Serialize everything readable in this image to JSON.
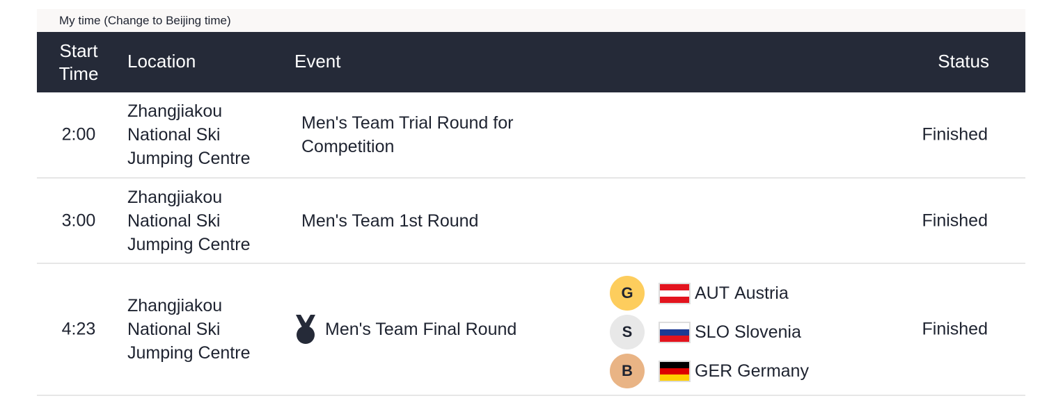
{
  "time_toggle": {
    "prefix": "My time ",
    "link": "(Change to Beijing time)"
  },
  "header": {
    "start_time_line1": "Start",
    "start_time_line2": "Time",
    "location": "Location",
    "event": "Event",
    "status": "Status"
  },
  "rows": [
    {
      "time": "2:00",
      "location": [
        "Zhangjiakou",
        "National Ski",
        "Jumping Centre"
      ],
      "event": "Men's Team Trial Round for Competition",
      "status": "Finished"
    },
    {
      "time": "3:00",
      "location": [
        "Zhangjiakou",
        "National Ski",
        "Jumping Centre"
      ],
      "event": "Men's Team 1st Round",
      "status": "Finished"
    },
    {
      "time": "4:23",
      "location": [
        "Zhangjiakou",
        "National Ski",
        "Jumping Centre"
      ],
      "event": "Men's Team Final Round",
      "event_icon": "medal-icon",
      "status": "Finished",
      "medals": [
        {
          "badge": "G",
          "color": "#fdcd5d",
          "code": "AUT",
          "country": "Austria",
          "flag": [
            "#e3141e",
            "#ffffff",
            "#e3141e"
          ]
        },
        {
          "badge": "S",
          "color": "#e8e8e8",
          "code": "SLO",
          "country": "Slovenia",
          "flag": [
            "#ffffff",
            "#1d3b94",
            "#e3141e"
          ]
        },
        {
          "badge": "B",
          "color": "#e9b485",
          "code": "GER",
          "country": "Germany",
          "flag": [
            "#000000",
            "#dd0000",
            "#ffce00"
          ]
        }
      ]
    }
  ],
  "colors": {
    "header_bg": "#252a38",
    "text": "#1e2330",
    "divider": "#e6e6e6"
  }
}
